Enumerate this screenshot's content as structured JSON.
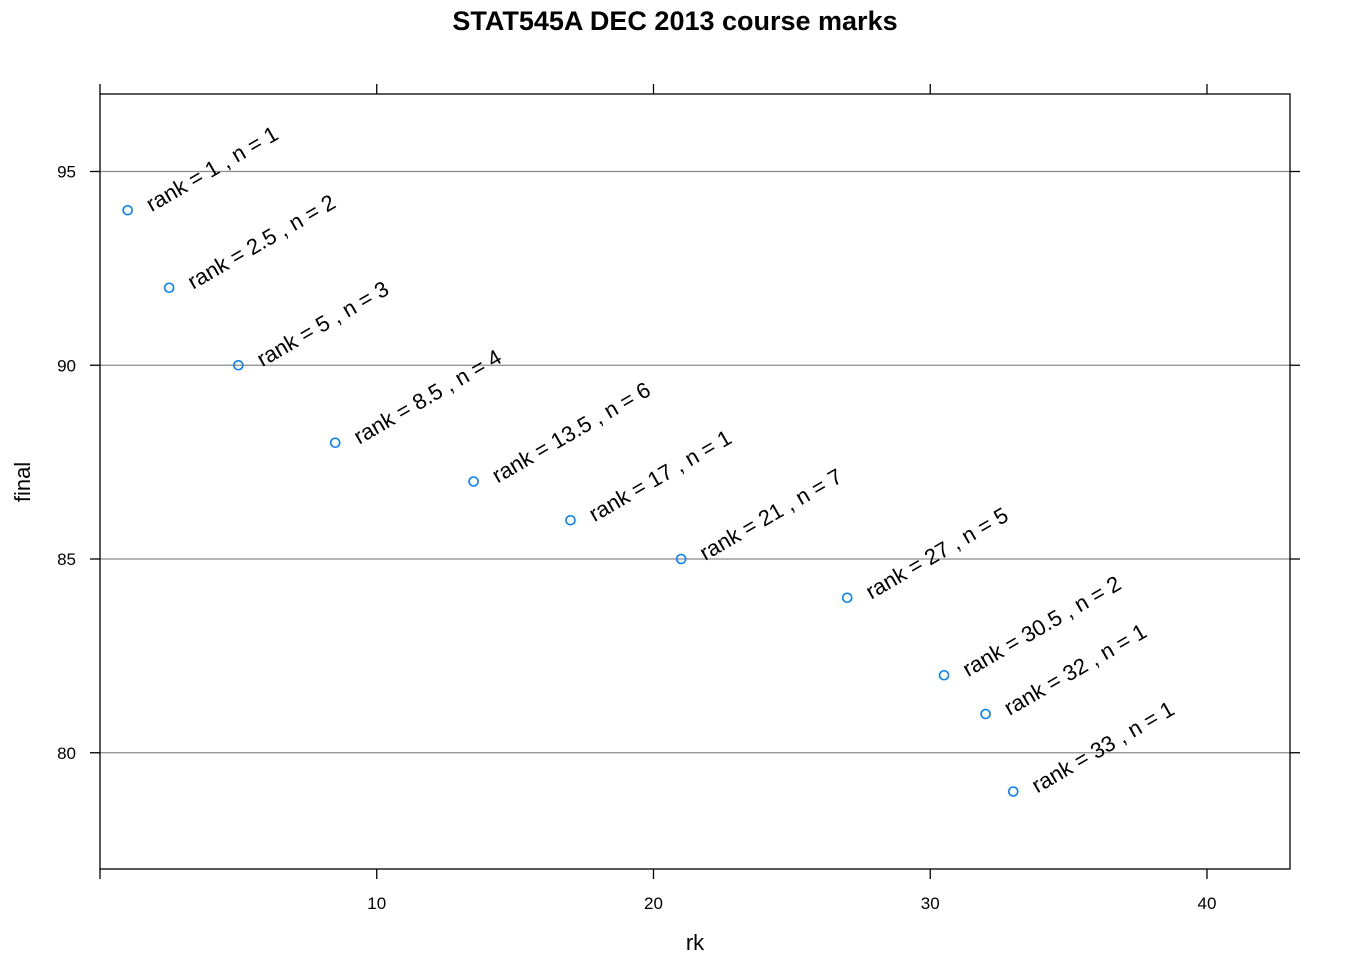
{
  "chart_data": {
    "type": "scatter",
    "title": "STAT545A DEC 2013 course marks",
    "xlabel": "rk",
    "ylabel": "final",
    "xlim": [
      0,
      43
    ],
    "ylim": [
      77,
      97
    ],
    "x_ticks": [
      10,
      20,
      30,
      40
    ],
    "y_ticks": [
      80,
      85,
      90,
      95
    ],
    "grid": "horizontal at y ticks",
    "point_color": "#0080ff",
    "points": [
      {
        "x": 1,
        "y": 94,
        "label": "rank = 1 , n = 1"
      },
      {
        "x": 2.5,
        "y": 92,
        "label": "rank = 2.5 , n = 2"
      },
      {
        "x": 5,
        "y": 90,
        "label": "rank = 5 , n = 3"
      },
      {
        "x": 8.5,
        "y": 88,
        "label": "rank = 8.5 , n = 4"
      },
      {
        "x": 13.5,
        "y": 87,
        "label": "rank = 13.5 , n = 6"
      },
      {
        "x": 17,
        "y": 86,
        "label": "rank = 17 , n = 1"
      },
      {
        "x": 21,
        "y": 85,
        "label": "rank = 21 , n = 7"
      },
      {
        "x": 27,
        "y": 84,
        "label": "rank = 27 , n = 5"
      },
      {
        "x": 30.5,
        "y": 82,
        "label": "rank = 30.5 , n = 2"
      },
      {
        "x": 32,
        "y": 81,
        "label": "rank = 32 , n = 1"
      },
      {
        "x": 33,
        "y": 79,
        "label": "rank = 33 , n = 1"
      }
    ]
  }
}
